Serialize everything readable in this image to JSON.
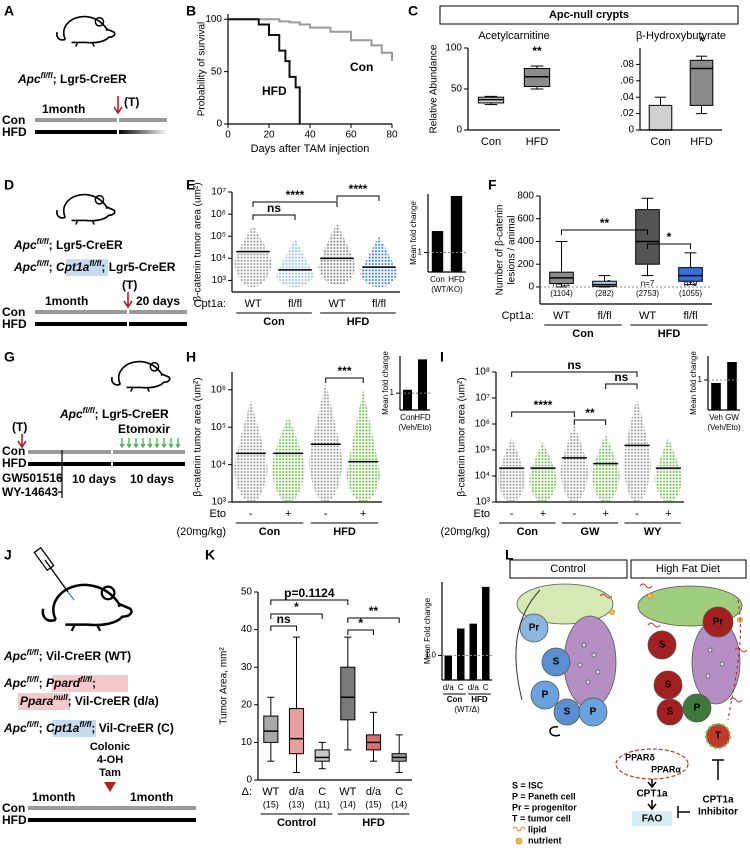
{
  "panel_labels": [
    "A",
    "B",
    "C",
    "D",
    "E",
    "F",
    "G",
    "H",
    "I",
    "J",
    "K",
    "L"
  ],
  "panels": {
    "A": {
      "apc": "Apc",
      "fl": "fl/fl",
      "lgr5": "; Lgr5-CreER",
      "time": "1month",
      "tam": "(T)",
      "con": "Con",
      "hfd": "HFD"
    },
    "C": {
      "header": "Apc-null crypts"
    },
    "D": {
      "apc": "Apc",
      "fl": "fl/fl",
      "lgr5": "; Lgr5-CreER",
      "sep": "; ",
      "cpt1a": "Cpt1a",
      "time": "1month",
      "tam": "(T)",
      "days": "20 days",
      "con": "Con",
      "hfd": "HFD"
    },
    "G": {
      "apc": "Apc",
      "fl": "fl/fl",
      "lgr5": "; Lgr5-CreER",
      "tam": "(T)",
      "eto": "Etomoxir",
      "con": "Con",
      "hfd": "HFD",
      "gw": "GW501516",
      "wy": "WY-14643",
      "days": "10 days"
    },
    "J": {
      "apc": "Apc",
      "fl": "fl/fl",
      "wt": "; Vil-CreER (WT)",
      "sep": "; ",
      "ppard": "Ppard",
      "sep2": ";",
      "ppara": "Ppara",
      "null": "null",
      "da": "; Vil-CreER (d/a)",
      "cpt1a": "Cpt1a",
      "c": "; Vil-CreER (C)",
      "colonic": "Colonic",
      "oh": "4-OH",
      "tam": "Tam",
      "time": "1month",
      "con": "Con",
      "hfd": "HFD"
    },
    "L": {
      "control": "Control",
      "hfd": "High Fat Diet",
      "pr": "Pr",
      "s": "S",
      "p": "P",
      "t": "T",
      "legend": [
        "S = ISC",
        "P = Paneth cell",
        "Pr = progenitor",
        "T = tumor cell",
        "lipid",
        "nutrient"
      ],
      "ppard": "PPARδ",
      "ppara": "PPARα",
      "cpt1a": "CPT1a",
      "fao": "FAO",
      "inhibitor": [
        "CPT1a",
        "Inhibitor"
      ]
    }
  },
  "chart_data": [
    {
      "type": "line",
      "step": true,
      "ylabel": "Probability of survival",
      "xlabel": "Days after TAM injection",
      "x": [
        0,
        10,
        15,
        20,
        25,
        28,
        30,
        33,
        35,
        40,
        50,
        60,
        70,
        75,
        80
      ],
      "series": [
        {
          "name": "Con",
          "color": "#9a9a9a",
          "values": [
            100,
            100,
            100,
            100,
            98,
            98,
            97,
            97,
            95,
            92,
            88,
            80,
            75,
            68,
            60
          ]
        },
        {
          "name": "HFD",
          "color": "#111111",
          "values": [
            100,
            100,
            95,
            85,
            70,
            60,
            45,
            35,
            0,
            null,
            null,
            null,
            null,
            null,
            null
          ]
        }
      ],
      "xlim": [
        0,
        80
      ],
      "xticks": [
        0,
        20,
        40,
        60,
        80
      ],
      "ylim": [
        0,
        105
      ],
      "yticks": [
        0,
        50,
        100
      ]
    },
    {
      "type": "box",
      "title": "Acetylcarnitine",
      "ylabel": "Relative Abundance",
      "categories": [
        "Con",
        "HFD"
      ],
      "boxes": [
        {
          "min": 31,
          "q1": 33,
          "median": 37,
          "q3": 40,
          "max": 41,
          "color": "#d0d0d0"
        },
        {
          "min": 50,
          "q1": 53,
          "median": 65,
          "q3": 75,
          "max": 78,
          "color": "#8c8c8c"
        }
      ],
      "ylim": [
        0,
        100
      ],
      "yticks": [
        0,
        50,
        100
      ],
      "annotations": [
        "**"
      ]
    },
    {
      "type": "box",
      "title": "β-Hydroxybutyrate",
      "categories": [
        "Con",
        "HFD"
      ],
      "boxes": [
        {
          "min": 0,
          "q1": 0,
          "median": 0,
          "q3": 0.03,
          "max": 0.04,
          "color": "#d0d0d0"
        },
        {
          "min": 0.02,
          "q1": 0.03,
          "median": 0.075,
          "q3": 0.085,
          "max": 0.09,
          "color": "#8c8c8c"
        }
      ],
      "ylim": [
        0,
        0.1
      ],
      "yticks": [
        0,
        {
          "value": 0.02,
          "label": ".02"
        },
        {
          "value": 0.04,
          "label": ".04"
        },
        {
          "value": 0.06,
          "label": ".06"
        },
        {
          "value": 0.08,
          "label": ".08"
        }
      ],
      "annotations": [
        "*"
      ]
    },
    {
      "type": "strip",
      "log": true,
      "ylabel": "β-catenin tumor area (um²)",
      "categories": [
        "WT",
        "fl/fl",
        "WT",
        "fl/fl"
      ],
      "groups": [
        "Con",
        "HFD"
      ],
      "factor_label": "Cpt1a:",
      "strips": [
        {
          "min": 500,
          "max": 300000,
          "mean": 20000,
          "color": "#9a9a9a"
        },
        {
          "min": 500,
          "max": 80000,
          "mean": 3000,
          "color": "#8fc3ee"
        },
        {
          "min": 600,
          "max": 400000,
          "mean": 10000,
          "color": "#8a8a8a"
        },
        {
          "min": 500,
          "max": 100000,
          "mean": 4000,
          "color": "#3b82e0"
        }
      ],
      "ylim": [
        300,
        10000000
      ],
      "yticks": [
        {
          "value": 1000,
          "label": "10³"
        },
        {
          "value": 10000,
          "label": "10⁴"
        },
        {
          "value": 100000,
          "label": "10⁵"
        },
        {
          "value": 1000000,
          "label": "10⁶"
        },
        {
          "value": 10000000,
          "label": "10⁷"
        }
      ],
      "annotations": [
        "ns",
        "****",
        "****"
      ]
    },
    {
      "type": "bar",
      "ylabel": "Mean fold change",
      "categories": [
        "Con",
        "HFD"
      ],
      "sublabel": "(WT/KO)",
      "values": [
        2.1,
        3.9
      ],
      "color": "#000000",
      "ylim": [
        0,
        4
      ],
      "yticks": [
        1
      ],
      "reference": 1
    },
    {
      "type": "box",
      "ylabel": [
        "Number of β-catenin",
        "lesions / animal"
      ],
      "categories": [
        "WT",
        "fl/fl",
        "WT",
        "fl/fl"
      ],
      "groups": [
        "Con",
        "HFD"
      ],
      "factor_label": "Cpt1a:",
      "n_labels": [
        "n=11",
        "n=9",
        "n=7",
        "n=9"
      ],
      "counts": [
        "(1104)",
        "(282)",
        "(2753)",
        "(1055)"
      ],
      "boxes": [
        {
          "min": 0,
          "q1": 30,
          "median": 80,
          "q3": 130,
          "max": 400,
          "color": "#8c8c8c"
        },
        {
          "min": 0,
          "q1": 5,
          "median": 20,
          "q3": 50,
          "max": 100,
          "color": "#a9cdea"
        },
        {
          "min": 100,
          "q1": 200,
          "median": 400,
          "q3": 680,
          "max": 780,
          "color": "#555555"
        },
        {
          "min": 20,
          "q1": 50,
          "median": 100,
          "q3": 170,
          "max": 300,
          "color": "#3a6fd8"
        }
      ],
      "ylim": [
        -150,
        800
      ],
      "yticks": [
        0,
        200,
        400,
        600,
        800
      ],
      "reference": 0,
      "annotations": [
        "**",
        "*"
      ]
    },
    {
      "type": "strip",
      "log": true,
      "ylabel": "β-catenin tumor area (um²)",
      "categories": [
        "-",
        "+",
        "-",
        "+"
      ],
      "groups": [
        "Con",
        "HFD"
      ],
      "factor_label": "Eto",
      "dose": "(20mg/kg)",
      "strips": [
        {
          "min": 1000,
          "max": 500000,
          "mean": 20000,
          "color": "#9a9a9a"
        },
        {
          "min": 1000,
          "max": 200000,
          "mean": 20000,
          "color": "#6cc24a"
        },
        {
          "min": 1000,
          "max": 1500000,
          "mean": 35000,
          "color": "#9a9a9a"
        },
        {
          "min": 1000,
          "max": 1000000,
          "mean": 12000,
          "color": "#6cc24a"
        }
      ],
      "ylim": [
        1000,
        3000000
      ],
      "yticks": [
        {
          "value": 1000,
          "label": "10³"
        },
        {
          "value": 10000,
          "label": "10⁴"
        },
        {
          "value": 100000,
          "label": "10⁵"
        },
        {
          "value": 1000000,
          "label": "10⁶"
        }
      ],
      "annotations": [
        "***"
      ]
    },
    {
      "type": "bar",
      "ylabel": "Mean fold change",
      "categories": [
        "Con",
        "HFD"
      ],
      "sublabel": "(Veh/Eto)",
      "values": [
        1.2,
        3.0
      ],
      "color": "#000000",
      "ylim": [
        0,
        3.2
      ],
      "yticks": [
        1
      ],
      "reference": 1
    },
    {
      "type": "strip",
      "log": true,
      "ylabel": "β-catenin tumor area (um²)",
      "categories": [
        "-",
        "+",
        "-",
        "+",
        "-",
        "+"
      ],
      "groups": [
        "Con",
        "GW",
        "WY"
      ],
      "factor_label": "Eto",
      "dose": "(20mg/kg)",
      "strips": [
        {
          "min": 1000,
          "max": 300000,
          "mean": 20000,
          "color": "#9a9a9a"
        },
        {
          "min": 1000,
          "max": 200000,
          "mean": 20000,
          "color": "#6cc24a"
        },
        {
          "min": 1000,
          "max": 1000000,
          "mean": 50000,
          "color": "#9a9a9a"
        },
        {
          "min": 1000,
          "max": 400000,
          "mean": 30000,
          "color": "#6cc24a"
        },
        {
          "min": 1000,
          "max": 10000000,
          "mean": 150000,
          "color": "#9a9a9a"
        },
        {
          "min": 1000,
          "max": 300000,
          "mean": 20000,
          "color": "#6cc24a"
        }
      ],
      "ylim": [
        1000,
        100000000
      ],
      "yticks": [
        {
          "value": 1000,
          "label": "10³"
        },
        {
          "value": 10000,
          "label": "10⁴"
        },
        {
          "value": 100000,
          "label": "10⁵"
        },
        {
          "value": 1000000,
          "label": "10⁶"
        },
        {
          "value": 10000000,
          "label": "10⁷"
        },
        {
          "value": 100000000,
          "label": "10⁸"
        }
      ],
      "annotations": [
        "ns",
        "ns",
        "****",
        "**"
      ]
    },
    {
      "type": "bar",
      "ylabel": "Mean fold change",
      "categories": [
        "Veh",
        "GW"
      ],
      "sublabel": "(Veh/Eto)",
      "values": [
        0.9,
        1.6
      ],
      "color": "#000000",
      "ylim": [
        0,
        1.8
      ],
      "yticks": [
        1
      ],
      "reference": 1
    },
    {
      "type": "box",
      "ylabel": "Tumor Area, mm²",
      "categories": [
        "WT",
        "d/a",
        "C",
        "WT",
        "d/a",
        "C"
      ],
      "groups": [
        "Control",
        "HFD"
      ],
      "factor_label": "Δ:",
      "counts": [
        "(15)",
        "(13)",
        "(11)",
        "(14)",
        "(15)",
        "(14)"
      ],
      "boxes": [
        {
          "min": 5,
          "q1": 10,
          "median": 13,
          "q3": 17,
          "max": 22,
          "color": "#a8a8a8"
        },
        {
          "min": 2,
          "q1": 7,
          "median": 11,
          "q3": 19,
          "max": 38,
          "color": "#e6a0a0"
        },
        {
          "min": 3,
          "q1": 5,
          "median": 6,
          "q3": 8,
          "max": 10,
          "color": "#c8c8c8"
        },
        {
          "min": 8,
          "q1": 16,
          "median": 22,
          "q3": 30,
          "max": 38,
          "color": "#7a7a7a"
        },
        {
          "min": 5,
          "q1": 8,
          "median": 10,
          "q3": 12,
          "max": 18,
          "color": "#d87070"
        },
        {
          "min": 2,
          "q1": 5,
          "median": 6,
          "q3": 7,
          "max": 12,
          "color": "#a0a0a0"
        }
      ],
      "ylim": [
        0,
        50
      ],
      "yticks": [
        0,
        10,
        20,
        30,
        40,
        50
      ],
      "annotations": [
        "p=0.1124",
        "ns",
        "*",
        "*",
        "**"
      ]
    },
    {
      "type": "bar",
      "ylabel": "Mean Fold change",
      "categories": [
        "d/a",
        "C",
        "d/a",
        "C"
      ],
      "groups": [
        "Con",
        "HFD"
      ],
      "sublabel": "(WT/Δ)",
      "values": [
        1.0,
        2.1,
        2.3,
        3.8
      ],
      "color": "#000000",
      "ylim": [
        0,
        4
      ],
      "yticks": [
        {
          "value": 1,
          "label": "1.0"
        }
      ],
      "reference": 1
    }
  ]
}
